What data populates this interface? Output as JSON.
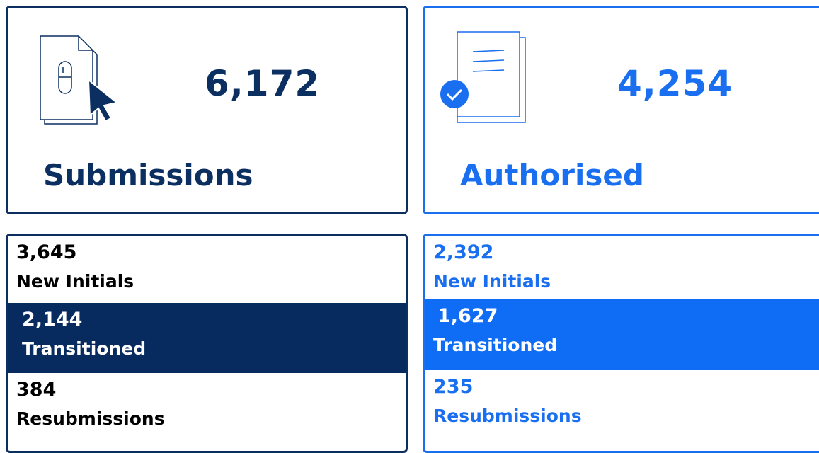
{
  "panels": [
    {
      "total": "6,172",
      "label": "Submissions",
      "breakdown": [
        {
          "value": "3,645",
          "label": "New Initials"
        },
        {
          "value": "2,144",
          "label": "Transitioned"
        },
        {
          "value": "384",
          "label": "Resubmissions"
        }
      ]
    },
    {
      "total": "4,254",
      "label": "Authorised",
      "breakdown": [
        {
          "value": "2,392",
          "label": "New Initials"
        },
        {
          "value": "1,627",
          "label": "Transitioned"
        },
        {
          "value": "235",
          "label": "Resubmissions"
        }
      ]
    }
  ]
}
